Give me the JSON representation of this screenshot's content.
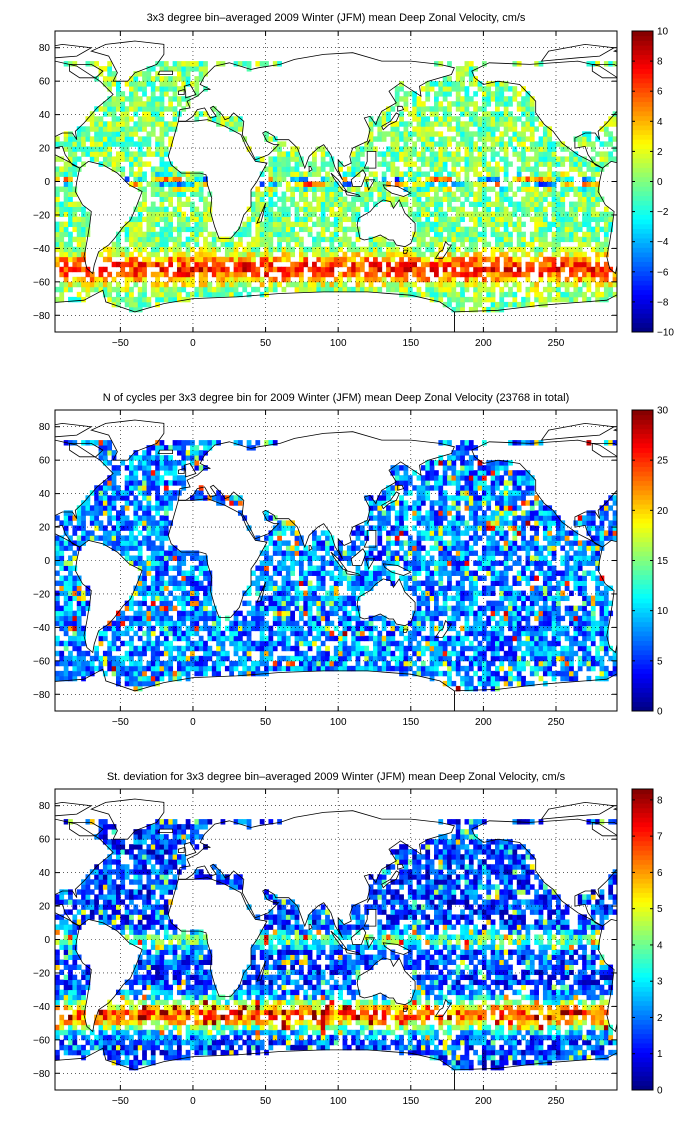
{
  "chart_data": [
    {
      "type": "heatmap",
      "title": "3x3 degree bin–averaged 2009 Winter (JFM) mean Deep Zonal Velocity, cm/s",
      "xlabel": "",
      "ylabel": "",
      "xlim": [
        -95,
        292
      ],
      "ylim": [
        -90,
        90
      ],
      "xticks": [
        -50,
        0,
        50,
        100,
        150,
        200,
        250
      ],
      "yticks": [
        -80,
        -60,
        -40,
        -20,
        0,
        20,
        40,
        60,
        80
      ],
      "grid": "dotted",
      "colormap": "jet",
      "colorbar": {
        "min": -10,
        "max": 10,
        "ticks": [
          -10,
          -8,
          -6,
          -4,
          -2,
          0,
          2,
          4,
          6,
          8,
          10
        ]
      },
      "cell_size_deg": 3,
      "field": "mean_zonal_velocity"
    },
    {
      "type": "heatmap",
      "title": "N of cycles per 3x3 degree bin for 2009 Winter (JFM) mean Deep Zonal Velocity (23768 in total)",
      "xlabel": "",
      "ylabel": "",
      "xlim": [
        -95,
        292
      ],
      "ylim": [
        -90,
        90
      ],
      "xticks": [
        -50,
        0,
        50,
        100,
        150,
        200,
        250
      ],
      "yticks": [
        -80,
        -60,
        -40,
        -20,
        0,
        20,
        40,
        60,
        80
      ],
      "grid": "dotted",
      "colormap": "jet",
      "colorbar": {
        "min": 0,
        "max": 30,
        "ticks": [
          0,
          5,
          10,
          15,
          20,
          25,
          30
        ]
      },
      "cell_size_deg": 3,
      "field": "cycle_count"
    },
    {
      "type": "heatmap",
      "title": "St. deviation for 3x3 degree bin–averaged 2009 Winter (JFM) mean Deep Zonal Velocity, cm/s",
      "xlabel": "",
      "ylabel": "",
      "xlim": [
        -95,
        292
      ],
      "ylim": [
        -90,
        90
      ],
      "xticks": [
        -50,
        0,
        50,
        100,
        150,
        200,
        250
      ],
      "yticks": [
        -80,
        -60,
        -40,
        -20,
        0,
        20,
        40,
        60,
        80
      ],
      "grid": "dotted",
      "colormap": "jet",
      "colorbar": {
        "min": 0,
        "max": 8.3,
        "ticks": [
          0,
          1,
          2,
          3,
          4,
          5,
          6,
          7,
          8
        ]
      },
      "cell_size_deg": 3,
      "field": "std_deviation"
    }
  ]
}
